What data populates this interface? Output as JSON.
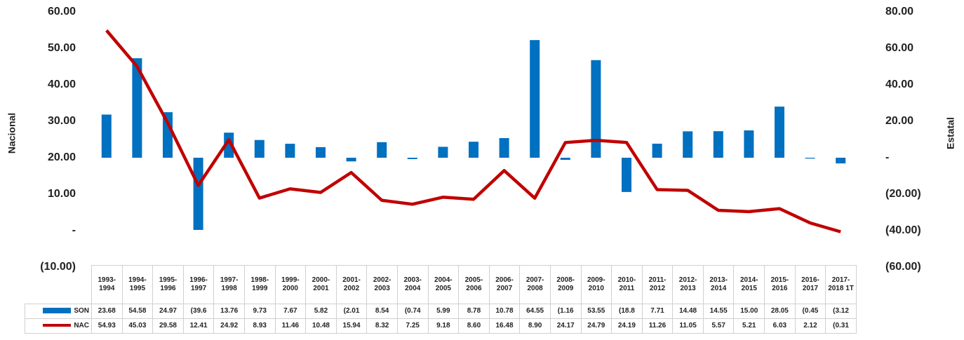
{
  "chart_data": {
    "type": "bar",
    "y_label": "Nacional",
    "y2_label": "Estatal",
    "categories": [
      "1993-1994",
      "1994-1995",
      "1995-1996",
      "1996-1997",
      "1997-1998",
      "1998-1999",
      "1999-2000",
      "2000-2001",
      "2001-2002",
      "2002-2003",
      "2003-2004",
      "2004-2005",
      "2005-2006",
      "2006-2007",
      "2007-2008",
      "2008-2009",
      "2009-2010",
      "2010-2011",
      "2011-2012",
      "2012-2013",
      "2013-2014",
      "2014-2015",
      "2015-2016",
      "2016-2017",
      "2017-2018 1T"
    ],
    "series": [
      {
        "name": "SON",
        "type": "bar",
        "axis": "y2",
        "color": "#0070c0",
        "values": [
          23.68,
          54.58,
          24.97,
          -39.6,
          13.76,
          9.73,
          7.67,
          5.82,
          -2.01,
          8.54,
          -0.74,
          5.99,
          8.78,
          10.78,
          64.55,
          -1.16,
          53.55,
          -18.8,
          7.71,
          14.48,
          14.55,
          15.0,
          28.05,
          -0.45,
          -3.12
        ],
        "value_labels": [
          "23.68",
          "54.58",
          "24.97",
          "(39.6",
          "13.76",
          "9.73",
          "7.67",
          "5.82",
          "(2.01",
          "8.54",
          "(0.74",
          "5.99",
          "8.78",
          "10.78",
          "64.55",
          "(1.16",
          "53.55",
          "(18.8",
          "7.71",
          "14.48",
          "14.55",
          "15.00",
          "28.05",
          "(0.45",
          "(3.12"
        ]
      },
      {
        "name": "NAC",
        "type": "line",
        "axis": "y",
        "color": "#c00000",
        "values": [
          54.93,
          45.03,
          29.58,
          12.41,
          24.92,
          8.93,
          11.46,
          10.48,
          15.94,
          8.32,
          7.25,
          9.18,
          8.6,
          16.48,
          8.9,
          24.17,
          24.79,
          24.19,
          11.26,
          11.05,
          5.57,
          5.21,
          6.03,
          2.12,
          -0.31
        ],
        "value_labels": [
          "54.93",
          "45.03",
          "29.58",
          "12.41",
          "24.92",
          "8.93",
          "11.46",
          "10.48",
          "15.94",
          "8.32",
          "7.25",
          "9.18",
          "8.60",
          "16.48",
          "8.90",
          "24.17",
          "24.79",
          "24.19",
          "11.26",
          "11.05",
          "5.57",
          "5.21",
          "6.03",
          "2.12",
          "(0.31"
        ]
      }
    ],
    "ylim": [
      -10,
      60
    ],
    "yticks": [
      {
        "value": 60,
        "label": "60.00"
      },
      {
        "value": 50,
        "label": "50.00"
      },
      {
        "value": 40,
        "label": "40.00"
      },
      {
        "value": 30,
        "label": "30.00"
      },
      {
        "value": 20,
        "label": "20.00"
      },
      {
        "value": 10,
        "label": "10.00"
      },
      {
        "value": 0,
        "label": "-"
      },
      {
        "value": -10,
        "label": "(10.00)"
      }
    ],
    "y2lim": [
      -60,
      80
    ],
    "y2ticks": [
      {
        "value": 80,
        "label": "80.00"
      },
      {
        "value": 60,
        "label": "60.00"
      },
      {
        "value": 40,
        "label": "40.00"
      },
      {
        "value": 20,
        "label": "20.00"
      },
      {
        "value": 0,
        "label": "-"
      },
      {
        "value": -20,
        "label": "(20.00)"
      },
      {
        "value": -40,
        "label": "(40.00)"
      },
      {
        "value": -60,
        "label": "(60.00)"
      }
    ],
    "grid": false
  }
}
